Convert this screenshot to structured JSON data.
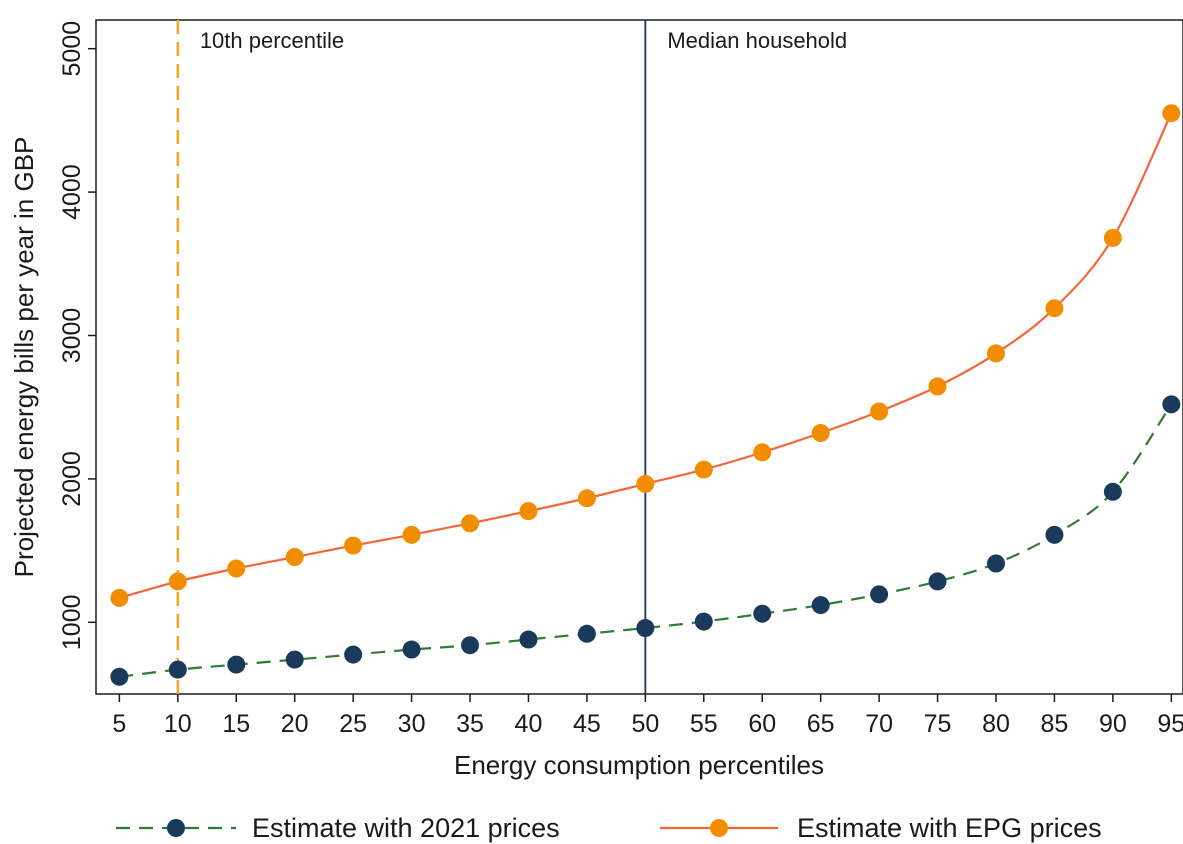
{
  "chart_data": {
    "type": "line",
    "title": "",
    "xlabel": "Energy consumption percentiles",
    "ylabel": "Projected energy bills per year in GBP",
    "x": [
      5,
      10,
      15,
      20,
      25,
      30,
      35,
      40,
      45,
      50,
      55,
      60,
      65,
      70,
      75,
      80,
      85,
      90,
      95
    ],
    "xlim": [
      3,
      96
    ],
    "ylim": [
      500,
      5200
    ],
    "yticks": [
      1000,
      2000,
      3000,
      4000,
      5000
    ],
    "grid": false,
    "legend_position": "bottom",
    "series": [
      {
        "name": "Estimate with 2021 prices",
        "line_style": "dashed",
        "line_color": "#2e7d32",
        "marker_color": "#1a3a5c",
        "values": [
          620,
          670,
          705,
          740,
          775,
          810,
          840,
          880,
          920,
          960,
          1005,
          1060,
          1120,
          1195,
          1285,
          1410,
          1610,
          1910,
          2520
        ]
      },
      {
        "name": "Estimate with EPG prices",
        "line_style": "solid",
        "line_color": "#f4663a",
        "marker_color": "#f28c00",
        "values": [
          1170,
          1285,
          1375,
          1455,
          1535,
          1610,
          1690,
          1775,
          1865,
          1965,
          2065,
          2185,
          2320,
          2470,
          2645,
          2875,
          3190,
          3680,
          4550
        ]
      }
    ],
    "reference_lines": [
      {
        "x": 10,
        "label": "10th percentile",
        "style": "dashed",
        "color": "#f5a623"
      },
      {
        "x": 50,
        "label": "Median household",
        "style": "solid",
        "color": "#1a3a5c"
      }
    ]
  }
}
